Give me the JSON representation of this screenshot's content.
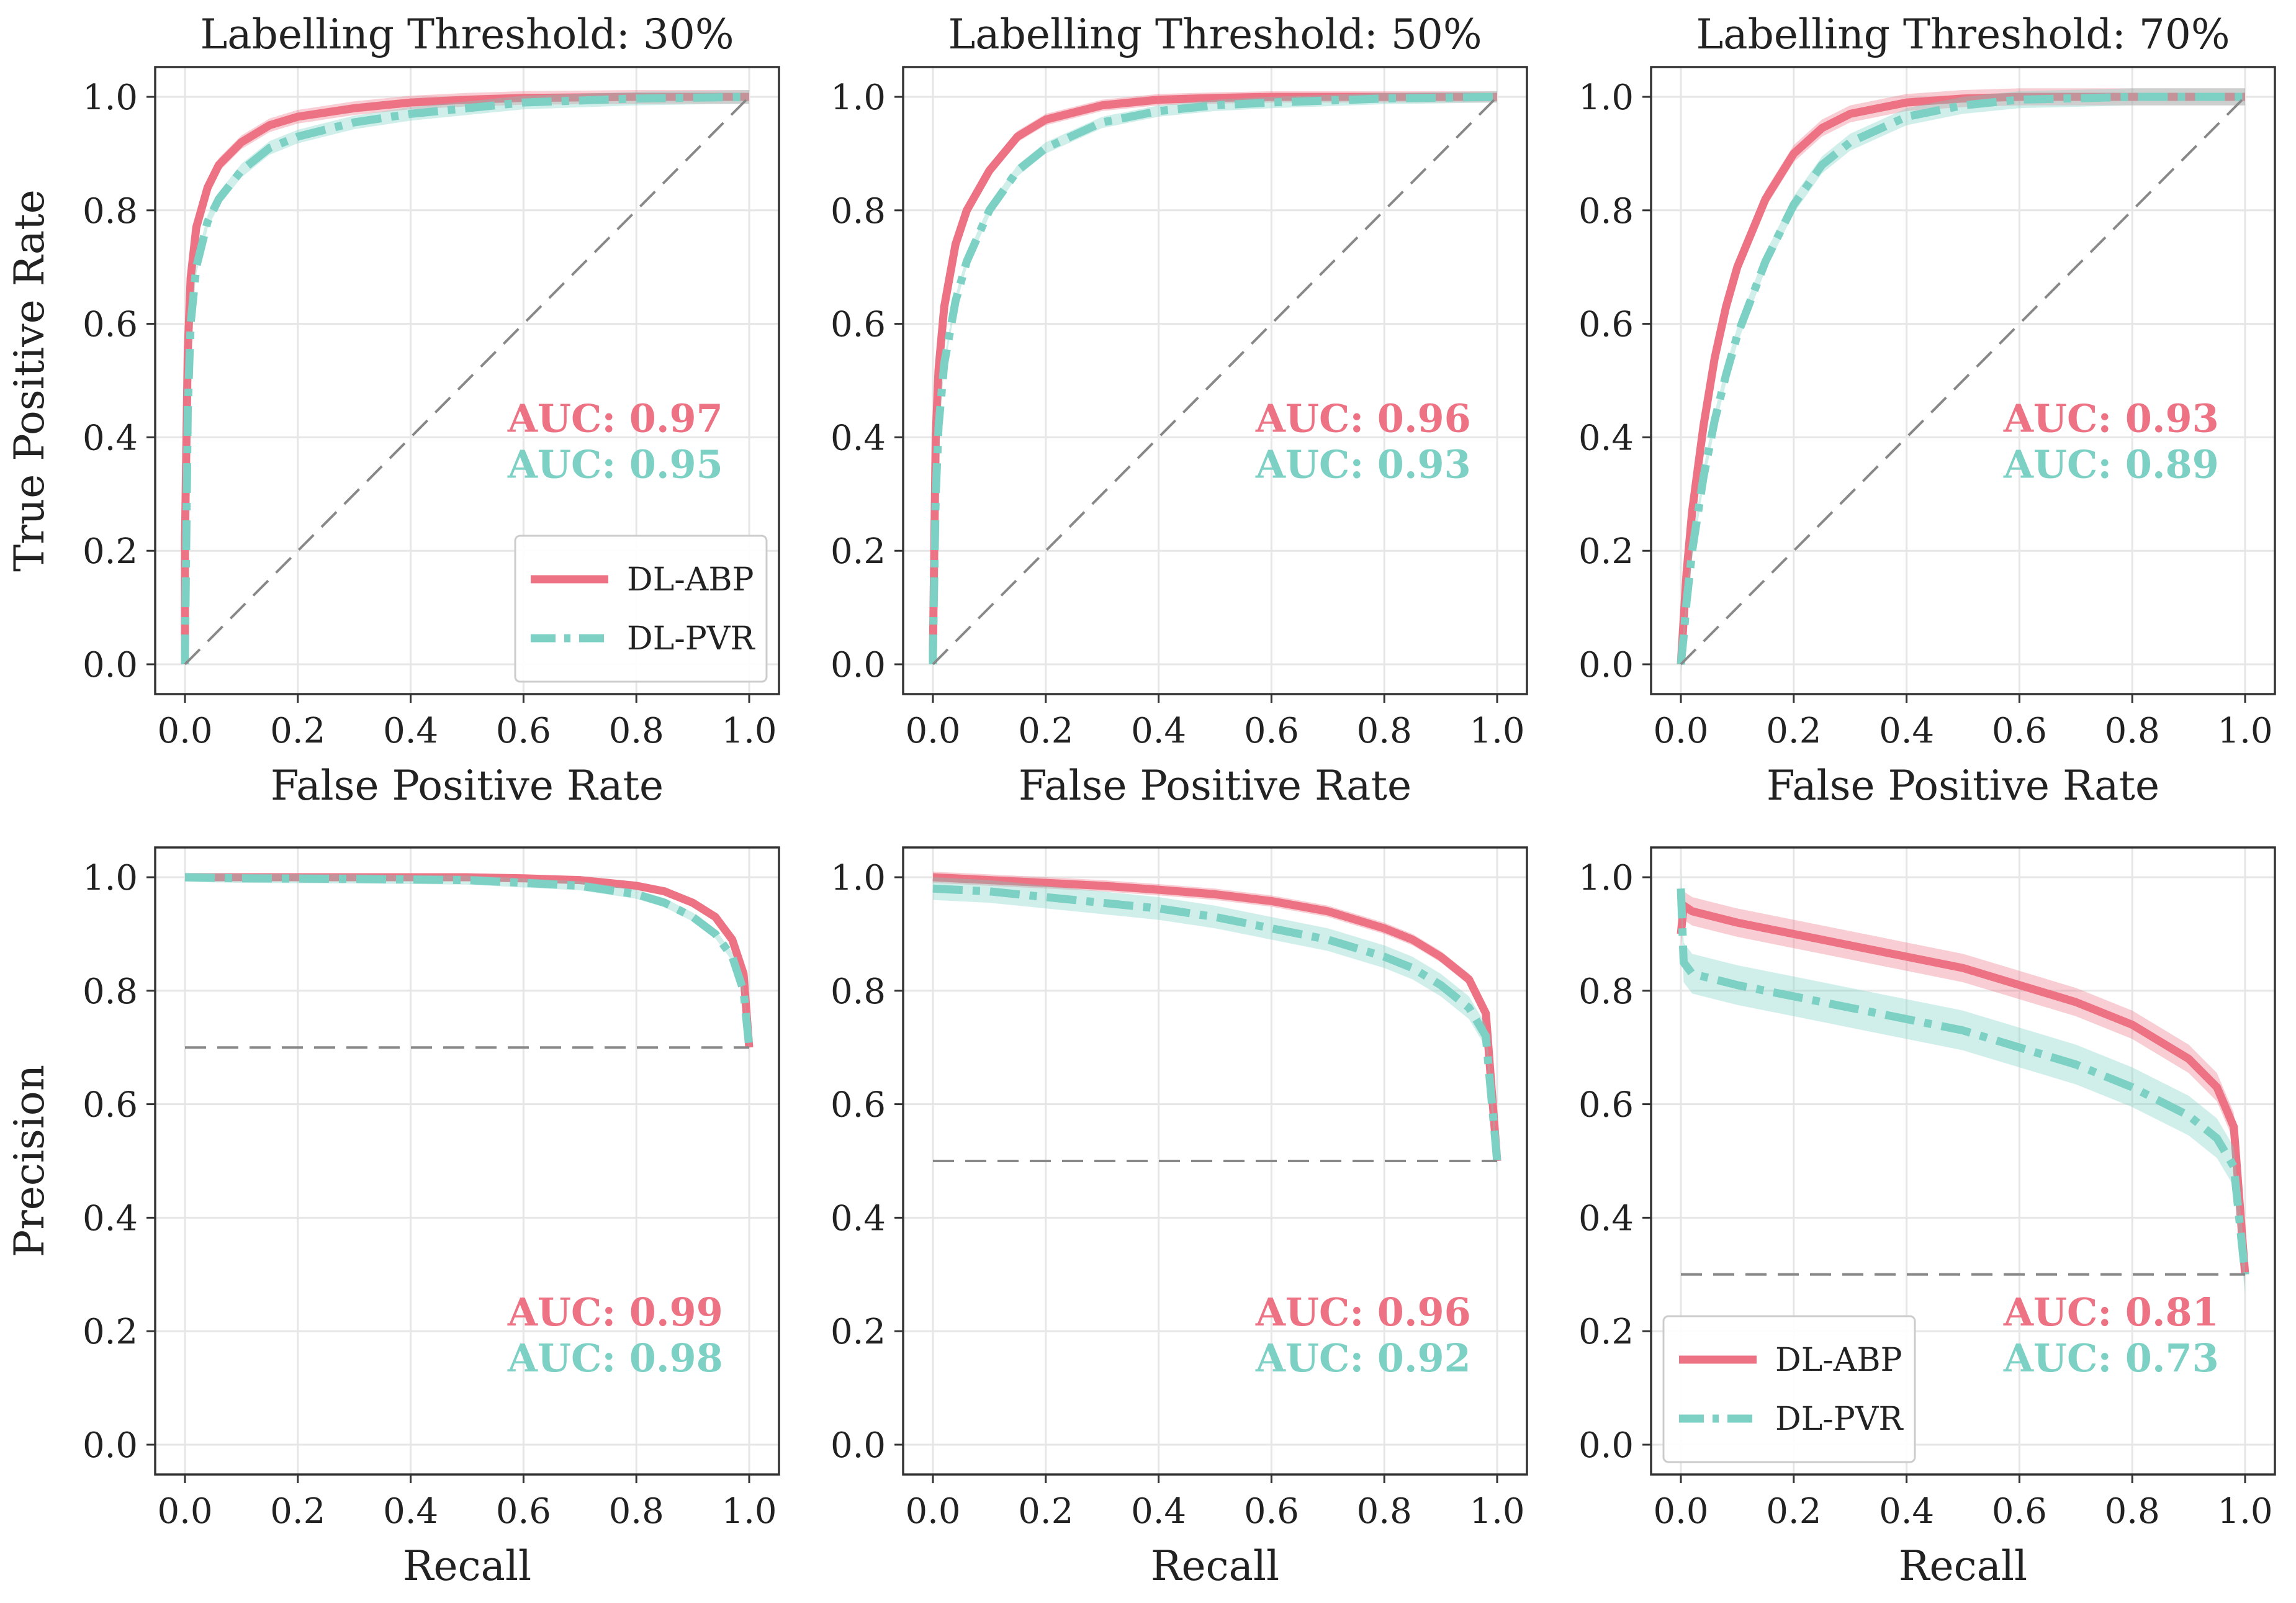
{
  "colors": {
    "abp": "#ec7284",
    "pvr": "#7cd0c4",
    "baseline": "#888888",
    "grid": "#e6e6e6"
  },
  "chart_data": [
    {
      "type": "line",
      "kind": "roc",
      "title": "Labelling Threshold: 30%",
      "xlabel": "False Positive Rate",
      "ylabel": "True Positive Rate",
      "xlim": [
        0,
        1
      ],
      "ylim": [
        0,
        1
      ],
      "xticks": [
        "0.0",
        "0.2",
        "0.4",
        "0.6",
        "0.8",
        "1.0"
      ],
      "yticks": [
        "0.0",
        "0.2",
        "0.4",
        "0.6",
        "0.8",
        "1.0"
      ],
      "grid": true,
      "series": [
        {
          "name": "DL-ABP",
          "style": "solid",
          "color": "#ec7284",
          "auc_label": "AUC: 0.97",
          "band": 0.012,
          "x": [
            0,
            0,
            0.005,
            0.01,
            0.02,
            0.04,
            0.06,
            0.1,
            0.15,
            0.2,
            0.3,
            0.4,
            0.5,
            0.6,
            0.8,
            1.0
          ],
          "y": [
            0,
            0.22,
            0.55,
            0.68,
            0.77,
            0.84,
            0.88,
            0.92,
            0.95,
            0.965,
            0.98,
            0.99,
            0.995,
            0.998,
            1.0,
            1.0
          ]
        },
        {
          "name": "DL-PVR",
          "style": "dashdot",
          "color": "#7cd0c4",
          "auc_label": "AUC: 0.95",
          "band": 0.012,
          "x": [
            0,
            0,
            0.005,
            0.01,
            0.02,
            0.04,
            0.06,
            0.1,
            0.15,
            0.2,
            0.3,
            0.4,
            0.5,
            0.6,
            0.8,
            1.0
          ],
          "y": [
            0,
            0.02,
            0.45,
            0.6,
            0.7,
            0.78,
            0.82,
            0.87,
            0.91,
            0.93,
            0.955,
            0.97,
            0.98,
            0.99,
            0.997,
            1.0
          ]
        },
        {
          "name": "chance",
          "style": "dashed",
          "color": "#888888",
          "x": [
            0,
            1
          ],
          "y": [
            0,
            1
          ]
        }
      ],
      "legend": {
        "position": "bottom-right",
        "entries": [
          "DL-ABP",
          "DL-PVR"
        ]
      }
    },
    {
      "type": "line",
      "kind": "roc",
      "title": "Labelling Threshold: 50%",
      "xlabel": "False Positive Rate",
      "ylabel": "",
      "xlim": [
        0,
        1
      ],
      "ylim": [
        0,
        1
      ],
      "xticks": [
        "0.0",
        "0.2",
        "0.4",
        "0.6",
        "0.8",
        "1.0"
      ],
      "yticks": [
        "0.0",
        "0.2",
        "0.4",
        "0.6",
        "0.8",
        "1.0"
      ],
      "grid": true,
      "series": [
        {
          "name": "DL-ABP",
          "style": "solid",
          "color": "#ec7284",
          "auc_label": "AUC: 0.96",
          "band": 0.01,
          "x": [
            0,
            0,
            0.005,
            0.01,
            0.02,
            0.04,
            0.06,
            0.1,
            0.15,
            0.2,
            0.3,
            0.4,
            0.5,
            0.6,
            0.8,
            1.0
          ],
          "y": [
            0,
            0.02,
            0.4,
            0.52,
            0.63,
            0.74,
            0.8,
            0.87,
            0.93,
            0.96,
            0.985,
            0.995,
            0.998,
            1.0,
            1.0,
            1.0
          ]
        },
        {
          "name": "DL-PVR",
          "style": "dashdot",
          "color": "#7cd0c4",
          "auc_label": "AUC: 0.93",
          "band": 0.01,
          "x": [
            0,
            0,
            0.005,
            0.01,
            0.02,
            0.04,
            0.06,
            0.1,
            0.15,
            0.2,
            0.3,
            0.4,
            0.5,
            0.6,
            0.8,
            1.0
          ],
          "y": [
            0,
            0.02,
            0.3,
            0.42,
            0.53,
            0.64,
            0.71,
            0.8,
            0.87,
            0.91,
            0.955,
            0.975,
            0.985,
            0.99,
            0.997,
            1.0
          ]
        },
        {
          "name": "chance",
          "style": "dashed",
          "color": "#888888",
          "x": [
            0,
            1
          ],
          "y": [
            0,
            1
          ]
        }
      ]
    },
    {
      "type": "line",
      "kind": "roc",
      "title": "Labelling Threshold: 70%",
      "xlabel": "False Positive Rate",
      "ylabel": "",
      "xlim": [
        0,
        1
      ],
      "ylim": [
        0,
        1
      ],
      "xticks": [
        "0.0",
        "0.2",
        "0.4",
        "0.6",
        "0.8",
        "1.0"
      ],
      "yticks": [
        "0.0",
        "0.2",
        "0.4",
        "0.6",
        "0.8",
        "1.0"
      ],
      "grid": true,
      "series": [
        {
          "name": "DL-ABP",
          "style": "solid",
          "color": "#ec7284",
          "auc_label": "AUC: 0.93",
          "band": 0.015,
          "x": [
            0,
            0.005,
            0.01,
            0.02,
            0.04,
            0.06,
            0.08,
            0.1,
            0.15,
            0.2,
            0.25,
            0.3,
            0.4,
            0.5,
            0.6,
            0.8,
            1.0
          ],
          "y": [
            0,
            0.08,
            0.16,
            0.27,
            0.42,
            0.54,
            0.63,
            0.7,
            0.82,
            0.9,
            0.945,
            0.97,
            0.99,
            0.997,
            1.0,
            1.0,
            1.0
          ]
        },
        {
          "name": "DL-PVR",
          "style": "dashdot",
          "color": "#7cd0c4",
          "auc_label": "AUC: 0.89",
          "band": 0.015,
          "x": [
            0,
            0.005,
            0.01,
            0.02,
            0.04,
            0.06,
            0.08,
            0.1,
            0.15,
            0.2,
            0.25,
            0.3,
            0.4,
            0.5,
            0.6,
            0.8,
            1.0
          ],
          "y": [
            0,
            0.05,
            0.11,
            0.2,
            0.33,
            0.43,
            0.51,
            0.58,
            0.71,
            0.81,
            0.88,
            0.92,
            0.965,
            0.985,
            0.995,
            1.0,
            1.0
          ]
        },
        {
          "name": "chance",
          "style": "dashed",
          "color": "#888888",
          "x": [
            0,
            1
          ],
          "y": [
            0,
            1
          ]
        }
      ]
    },
    {
      "type": "line",
      "kind": "pr",
      "title": "",
      "xlabel": "Recall",
      "ylabel": "Precision",
      "xlim": [
        0,
        1
      ],
      "ylim": [
        0,
        1
      ],
      "xticks": [
        "0.0",
        "0.2",
        "0.4",
        "0.6",
        "0.8",
        "1.0"
      ],
      "yticks": [
        "0.0",
        "0.2",
        "0.4",
        "0.6",
        "0.8",
        "1.0"
      ],
      "grid": true,
      "series": [
        {
          "name": "DL-ABP",
          "style": "solid",
          "color": "#ec7284",
          "auc_label": "AUC: 0.99",
          "band": 0.005,
          "x": [
            0,
            0.1,
            0.3,
            0.5,
            0.6,
            0.7,
            0.8,
            0.85,
            0.9,
            0.94,
            0.97,
            0.99,
            1.0
          ],
          "y": [
            1.0,
            1.0,
            1.0,
            1.0,
            0.998,
            0.995,
            0.985,
            0.975,
            0.955,
            0.93,
            0.89,
            0.83,
            0.7
          ]
        },
        {
          "name": "DL-PVR",
          "style": "dashdot",
          "color": "#7cd0c4",
          "auc_label": "AUC: 0.98",
          "band": 0.008,
          "x": [
            0,
            0.1,
            0.3,
            0.5,
            0.6,
            0.7,
            0.8,
            0.85,
            0.9,
            0.94,
            0.97,
            0.99,
            1.0
          ],
          "y": [
            1.0,
            0.998,
            0.997,
            0.995,
            0.99,
            0.985,
            0.97,
            0.955,
            0.93,
            0.9,
            0.86,
            0.8,
            0.7
          ]
        },
        {
          "name": "baseline",
          "style": "dashed",
          "color": "#888888",
          "x": [
            0,
            1
          ],
          "y": [
            0.7,
            0.7
          ]
        }
      ]
    },
    {
      "type": "line",
      "kind": "pr",
      "title": "",
      "xlabel": "Recall",
      "ylabel": "",
      "xlim": [
        0,
        1
      ],
      "ylim": [
        0,
        1
      ],
      "xticks": [
        "0.0",
        "0.2",
        "0.4",
        "0.6",
        "0.8",
        "1.0"
      ],
      "yticks": [
        "0.0",
        "0.2",
        "0.4",
        "0.6",
        "0.8",
        "1.0"
      ],
      "grid": true,
      "series": [
        {
          "name": "DL-ABP",
          "style": "solid",
          "color": "#ec7284",
          "auc_label": "AUC: 0.96",
          "band": 0.01,
          "x": [
            0,
            0.1,
            0.2,
            0.3,
            0.4,
            0.5,
            0.6,
            0.7,
            0.8,
            0.85,
            0.9,
            0.95,
            0.98,
            1.0
          ],
          "y": [
            1.0,
            0.995,
            0.99,
            0.985,
            0.978,
            0.97,
            0.958,
            0.94,
            0.91,
            0.89,
            0.86,
            0.82,
            0.76,
            0.5
          ]
        },
        {
          "name": "DL-PVR",
          "style": "dashdot",
          "color": "#7cd0c4",
          "auc_label": "AUC: 0.92",
          "band": 0.02,
          "x": [
            0,
            0.1,
            0.2,
            0.3,
            0.4,
            0.5,
            0.6,
            0.7,
            0.8,
            0.85,
            0.9,
            0.95,
            0.98,
            1.0
          ],
          "y": [
            0.98,
            0.975,
            0.965,
            0.955,
            0.945,
            0.93,
            0.91,
            0.89,
            0.86,
            0.84,
            0.81,
            0.77,
            0.72,
            0.5
          ]
        },
        {
          "name": "baseline",
          "style": "dashed",
          "color": "#888888",
          "x": [
            0,
            1
          ],
          "y": [
            0.5,
            0.5
          ]
        }
      ]
    },
    {
      "type": "line",
      "kind": "pr",
      "title": "",
      "xlabel": "Recall",
      "ylabel": "",
      "xlim": [
        0,
        1
      ],
      "ylim": [
        0,
        1
      ],
      "xticks": [
        "0.0",
        "0.2",
        "0.4",
        "0.6",
        "0.8",
        "1.0"
      ],
      "yticks": [
        "0.0",
        "0.2",
        "0.4",
        "0.6",
        "0.8",
        "1.0"
      ],
      "grid": true,
      "series": [
        {
          "name": "DL-ABP",
          "style": "solid",
          "color": "#ec7284",
          "auc_label": "AUC: 0.81",
          "band": 0.025,
          "x": [
            0,
            0.005,
            0.02,
            0.1,
            0.2,
            0.3,
            0.4,
            0.5,
            0.6,
            0.7,
            0.8,
            0.9,
            0.95,
            0.98,
            1.0
          ],
          "y": [
            0.9,
            0.95,
            0.94,
            0.92,
            0.9,
            0.88,
            0.86,
            0.84,
            0.81,
            0.78,
            0.74,
            0.68,
            0.63,
            0.56,
            0.3
          ]
        },
        {
          "name": "DL-PVR",
          "style": "dashdot",
          "color": "#7cd0c4",
          "auc_label": "AUC: 0.73",
          "band": 0.035,
          "x": [
            0,
            0.005,
            0.02,
            0.1,
            0.2,
            0.3,
            0.4,
            0.5,
            0.6,
            0.7,
            0.8,
            0.9,
            0.95,
            0.98,
            1.0
          ],
          "y": [
            0.98,
            0.85,
            0.83,
            0.81,
            0.79,
            0.77,
            0.75,
            0.73,
            0.7,
            0.67,
            0.63,
            0.58,
            0.54,
            0.49,
            0.3
          ]
        },
        {
          "name": "baseline",
          "style": "dashed",
          "color": "#888888",
          "x": [
            0,
            1
          ],
          "y": [
            0.3,
            0.3
          ]
        }
      ],
      "legend": {
        "position": "bottom-left",
        "entries": [
          "DL-ABP",
          "DL-PVR"
        ]
      }
    }
  ]
}
